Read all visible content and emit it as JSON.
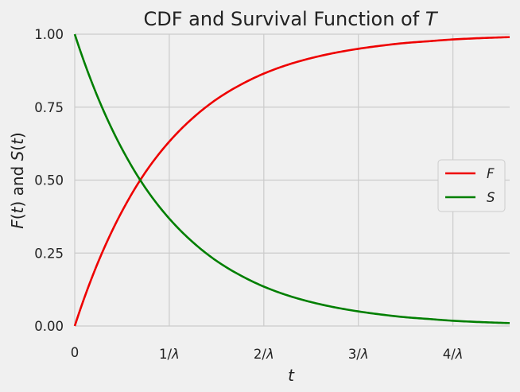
{
  "chart_data": {
    "type": "line",
    "title": {
      "text": "CDF and Survival Function of ",
      "italic": "T"
    },
    "xlabel": "t",
    "ylabel": {
      "p1": "F",
      "p2": "(",
      "p3": "t",
      "p4": ") and ",
      "p5": "S",
      "p6": "(",
      "p7": "t",
      "p8": ")"
    },
    "x_unit": "1/λ",
    "xlim": [
      0,
      4.6
    ],
    "ylim": [
      0,
      1
    ],
    "grid": true,
    "legend_position": "center-right",
    "x_ticks": [
      {
        "value": 0,
        "label": "0"
      },
      {
        "value": 1,
        "label": "1/λ"
      },
      {
        "value": 2,
        "label": "2/λ"
      },
      {
        "value": 3,
        "label": "3/λ"
      },
      {
        "value": 4,
        "label": "4/λ"
      }
    ],
    "y_ticks": [
      {
        "value": 0,
        "label": "0.00"
      },
      {
        "value": 0.25,
        "label": "0.25"
      },
      {
        "value": 0.5,
        "label": "0.50"
      },
      {
        "value": 0.75,
        "label": "0.75"
      },
      {
        "value": 1,
        "label": "1.00"
      }
    ],
    "x": [
      0,
      0.25,
      0.5,
      0.75,
      1,
      1.25,
      1.5,
      1.75,
      2,
      2.25,
      2.5,
      2.75,
      3,
      3.25,
      3.5,
      3.75,
      4,
      4.25,
      4.5,
      4.6
    ],
    "series": [
      {
        "name": "F",
        "color": "#ee0000",
        "values": [
          0,
          0.221,
          0.393,
          0.528,
          0.632,
          0.713,
          0.777,
          0.826,
          0.865,
          0.895,
          0.918,
          0.936,
          0.95,
          0.961,
          0.97,
          0.976,
          0.982,
          0.986,
          0.989,
          0.99
        ]
      },
      {
        "name": "S",
        "color": "#007f00",
        "values": [
          1,
          0.779,
          0.607,
          0.472,
          0.368,
          0.287,
          0.223,
          0.174,
          0.135,
          0.105,
          0.082,
          0.064,
          0.05,
          0.039,
          0.03,
          0.024,
          0.018,
          0.014,
          0.011,
          0.01
        ]
      }
    ],
    "colors": {
      "background": "#f0f0f0",
      "grid": "#cbcbcb",
      "legend_border": "#cccccc"
    }
  }
}
